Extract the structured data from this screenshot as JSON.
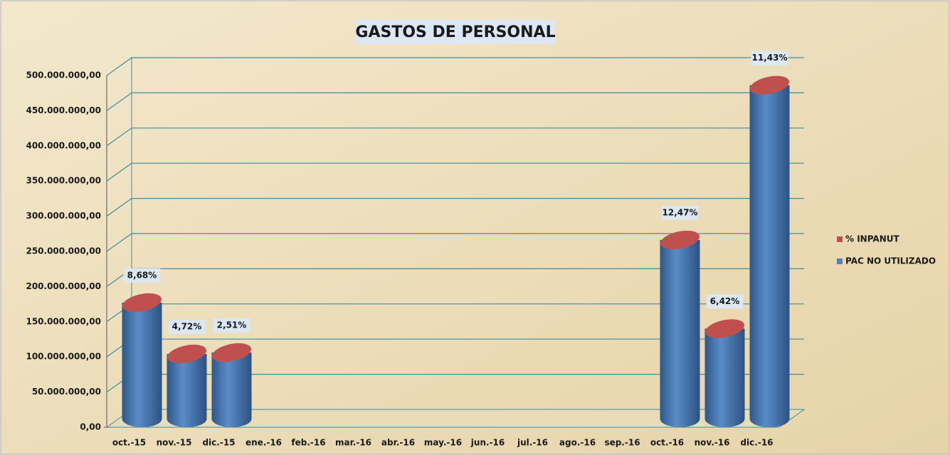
{
  "chart_data": {
    "type": "cylinder",
    "title": "GASTOS DE PERSONAL",
    "categories": [
      "oct.-15",
      "nov.-15",
      "dic.-15",
      "ene.-16",
      "feb.-16",
      "mar.-16",
      "abr.-16",
      "may.-16",
      "jun.-16",
      "jul.-16",
      "ago.-16",
      "sep.-16",
      "oct.-16",
      "nov.-16",
      "dic.-16"
    ],
    "series": [
      {
        "name": "% INPANUT",
        "color": "#c0504d",
        "values": [
          8.68,
          4.72,
          2.51,
          null,
          null,
          null,
          null,
          null,
          null,
          null,
          null,
          null,
          12.47,
          6.42,
          11.43
        ],
        "value_labels": [
          "8,68%",
          "4,72%",
          "2,51%",
          null,
          null,
          null,
          null,
          null,
          null,
          null,
          null,
          null,
          "12,47%",
          "6,42%",
          "11,43%"
        ]
      },
      {
        "name": "PAC NO UTILIZADO",
        "color": "#4f81bd",
        "values": [
          165000000,
          92000000,
          94000000,
          null,
          null,
          null,
          null,
          null,
          null,
          null,
          null,
          null,
          254000000,
          128000000,
          474000000
        ]
      }
    ],
    "ylim": [
      0,
      500000000
    ],
    "yticks": [
      {
        "value": 0,
        "label": "0,00"
      },
      {
        "value": 50000000,
        "label": "50.000.000,00"
      },
      {
        "value": 100000000,
        "label": "100.000.000,00"
      },
      {
        "value": 150000000,
        "label": "150.000.000,00"
      },
      {
        "value": 200000000,
        "label": "200.000.000,00"
      },
      {
        "value": 250000000,
        "label": "250.000.000,00"
      },
      {
        "value": 300000000,
        "label": "300.000.000,00"
      },
      {
        "value": 350000000,
        "label": "350.000.000,00"
      },
      {
        "value": 400000000,
        "label": "400.000.000,00"
      },
      {
        "value": 450000000,
        "label": "450.000.000,00"
      },
      {
        "value": 500000000,
        "label": "500.000.000,00"
      }
    ],
    "grid": true,
    "legend": "right"
  }
}
